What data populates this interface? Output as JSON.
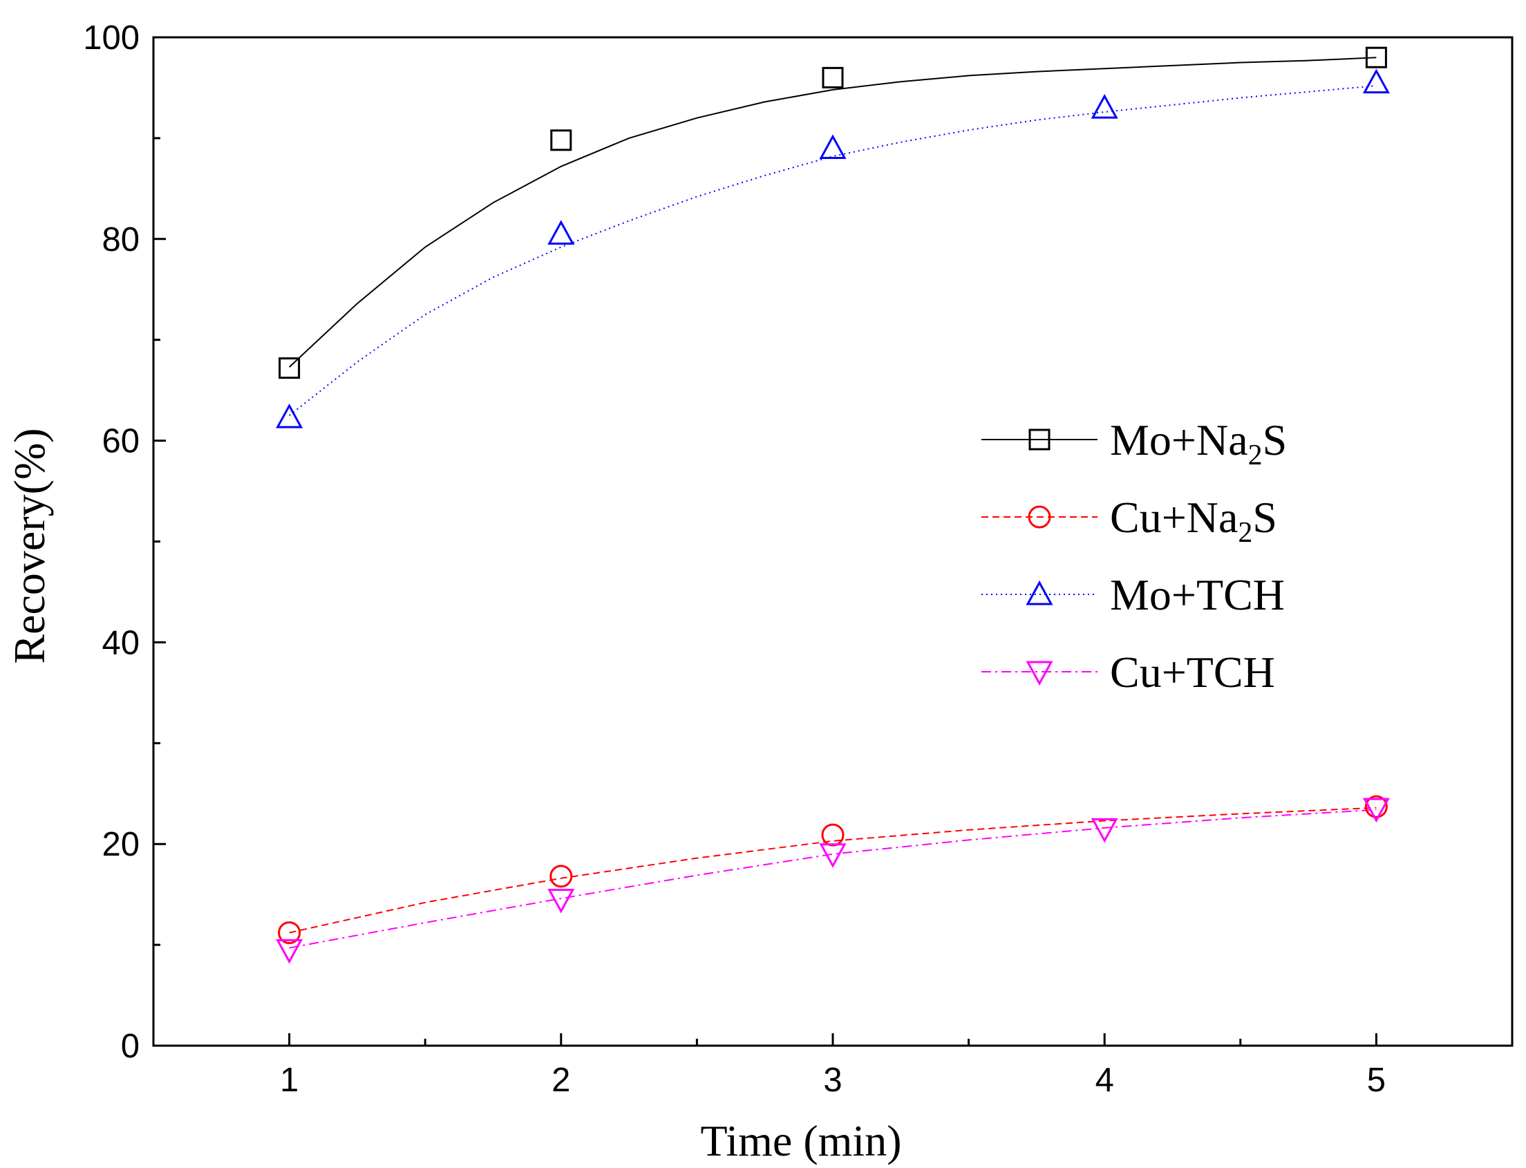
{
  "chart_data": {
    "type": "line",
    "title": "",
    "xlabel": "Time (min)",
    "ylabel": "Recovery(%)",
    "xlim": [
      0.5,
      5.5
    ],
    "ylim": [
      0,
      100
    ],
    "xticks": [
      1,
      2,
      3,
      4,
      5
    ],
    "yticks": [
      0,
      20,
      40,
      60,
      80,
      100
    ],
    "xtick_labels": [
      "1",
      "2",
      "3",
      "4",
      "5"
    ],
    "ytick_labels": [
      "0",
      "20",
      "40",
      "60",
      "80",
      "100"
    ],
    "grid": false,
    "legend_position": "center-right",
    "series": [
      {
        "name": "Mo+Na₂S",
        "legend_parts": [
          "Mo+Na",
          "2",
          "S"
        ],
        "color": "#000000",
        "marker": "square",
        "line": "solid",
        "x": [
          1,
          2,
          3,
          4,
          5
        ],
        "y": [
          67.2,
          89.8,
          96.0,
          null,
          98.0
        ],
        "fit": [
          [
            1,
            67.3
          ],
          [
            1.25,
            73.6
          ],
          [
            1.5,
            79.2
          ],
          [
            1.75,
            83.6
          ],
          [
            2,
            87.2
          ],
          [
            2.25,
            90.0
          ],
          [
            2.5,
            92.0
          ],
          [
            2.75,
            93.6
          ],
          [
            3,
            94.8
          ],
          [
            3.25,
            95.6
          ],
          [
            3.5,
            96.2
          ],
          [
            3.75,
            96.6
          ],
          [
            4,
            96.9
          ],
          [
            4.25,
            97.2
          ],
          [
            4.5,
            97.5
          ],
          [
            4.75,
            97.7
          ],
          [
            5,
            98.0
          ]
        ]
      },
      {
        "name": "Cu+Na₂S",
        "legend_parts": [
          "Cu+Na",
          "2",
          "S"
        ],
        "color": "#ff0000",
        "marker": "circle",
        "line": "dashed",
        "x": [
          1,
          2,
          3,
          4,
          5
        ],
        "y": [
          11.2,
          16.8,
          20.9,
          null,
          23.7
        ],
        "fit": [
          [
            1,
            11.2
          ],
          [
            1.5,
            14.2
          ],
          [
            2,
            16.6
          ],
          [
            2.5,
            18.6
          ],
          [
            3,
            20.3
          ],
          [
            3.5,
            21.4
          ],
          [
            4,
            22.3
          ],
          [
            4.5,
            23.0
          ],
          [
            5,
            23.6
          ]
        ]
      },
      {
        "name": "Mo+TCH",
        "legend_parts": [
          "Mo+TCH",
          "",
          ""
        ],
        "color": "#0000ff",
        "marker": "triangle-up",
        "line": "dotted",
        "x": [
          1,
          2,
          3,
          4,
          5
        ],
        "y": [
          62.3,
          80.5,
          89.0,
          93.0,
          95.5
        ],
        "fit": [
          [
            1,
            62.5
          ],
          [
            1.25,
            67.8
          ],
          [
            1.5,
            72.5
          ],
          [
            1.75,
            76.2
          ],
          [
            2,
            79.2
          ],
          [
            2.25,
            81.8
          ],
          [
            2.5,
            84.2
          ],
          [
            2.75,
            86.3
          ],
          [
            3,
            88.2
          ],
          [
            3.25,
            89.6
          ],
          [
            3.5,
            90.8
          ],
          [
            3.75,
            91.8
          ],
          [
            4,
            92.6
          ],
          [
            4.25,
            93.3
          ],
          [
            4.5,
            94.0
          ],
          [
            4.75,
            94.6
          ],
          [
            5,
            95.2
          ]
        ]
      },
      {
        "name": "Cu+TCH",
        "legend_parts": [
          "Cu+TCH",
          "",
          ""
        ],
        "color": "#ff00ff",
        "marker": "triangle-down",
        "line": "dashdot",
        "x": [
          1,
          2,
          3,
          4,
          5
        ],
        "y": [
          9.5,
          14.5,
          19.0,
          21.5,
          23.5
        ],
        "fit": [
          [
            1,
            9.7
          ],
          [
            1.5,
            12.2
          ],
          [
            2,
            14.6
          ],
          [
            2.5,
            16.9
          ],
          [
            3,
            19.0
          ],
          [
            3.5,
            20.4
          ],
          [
            4,
            21.6
          ],
          [
            4.5,
            22.6
          ],
          [
            5,
            23.4
          ]
        ]
      }
    ]
  }
}
